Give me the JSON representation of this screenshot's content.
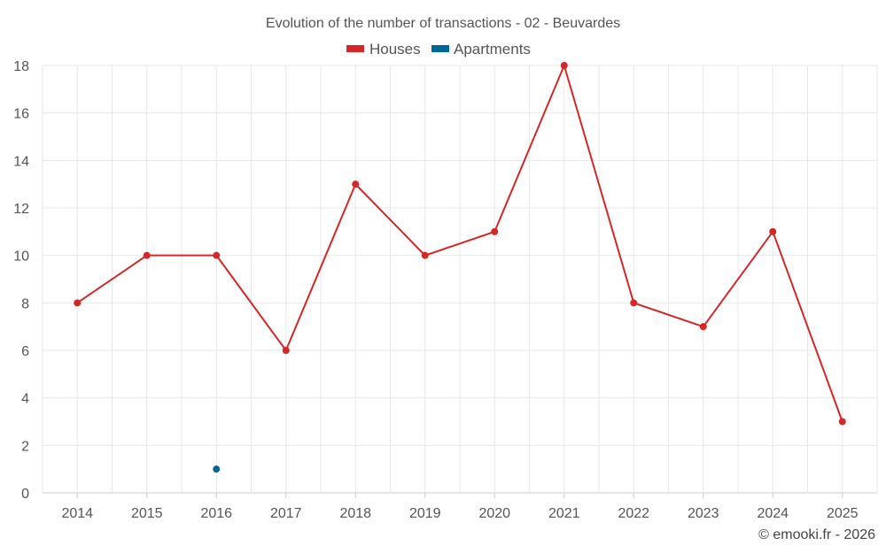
{
  "chart_data": {
    "type": "line",
    "title": "Evolution of the number of transactions - 02 - Beuvardes",
    "categories": [
      "2014",
      "2015",
      "2016",
      "2017",
      "2018",
      "2019",
      "2020",
      "2021",
      "2022",
      "2023",
      "2024",
      "2025"
    ],
    "series": [
      {
        "name": "Houses",
        "color": "#d62728",
        "values": [
          8,
          10,
          10,
          6,
          13,
          10,
          11,
          18,
          8,
          7,
          11,
          3
        ]
      },
      {
        "name": "Apartments",
        "color": "#00679a",
        "values": [
          null,
          null,
          1,
          null,
          null,
          null,
          null,
          null,
          null,
          null,
          null,
          null
        ]
      }
    ],
    "ylim": [
      0,
      18
    ],
    "yticks": [
      0,
      2,
      4,
      6,
      8,
      10,
      12,
      14,
      16,
      18
    ],
    "xlabel": "",
    "ylabel": "",
    "grid": true,
    "legend_position": "top-center"
  },
  "credit": "© emooki.fr - 2026"
}
